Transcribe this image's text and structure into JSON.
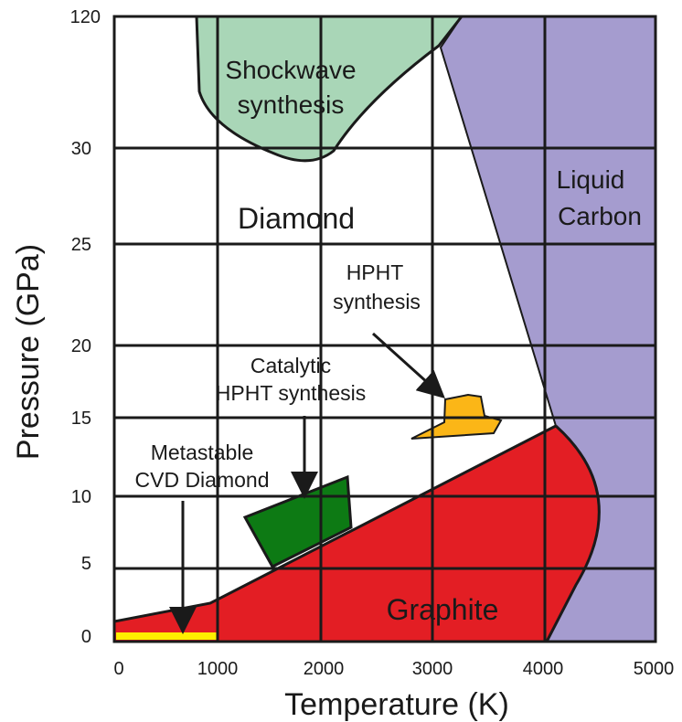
{
  "colors": {
    "shockwave": "#a9d6b7",
    "liquid_carbon": "#a59ccf",
    "graphite": "#e31e24",
    "catalytic": "#0d7a14",
    "hpht": "#fbb617",
    "cvd": "#ffef00"
  },
  "axes": {
    "x_title": "Temperature (K)",
    "y_title": "Pressure (GPa)",
    "x_ticks": [
      "0",
      "1000",
      "2000",
      "3000",
      "4000",
      "5000"
    ],
    "y_ticks": [
      "0",
      "5",
      "10",
      "15",
      "20",
      "25",
      "30",
      "120"
    ]
  },
  "regions": {
    "shockwave_line1": "Shockwave",
    "shockwave_line2": "synthesis",
    "diamond": "Diamond",
    "liquid_line1": "Liquid",
    "liquid_line2": "Carbon",
    "graphite": "Graphite"
  },
  "annotations": {
    "hpht_line1": "HPHT",
    "hpht_line2": "synthesis",
    "catalytic_line1": "Catalytic",
    "catalytic_line2": "HPHT synthesis",
    "cvd_line1": "Metastable",
    "cvd_line2": "CVD Diamond"
  }
}
